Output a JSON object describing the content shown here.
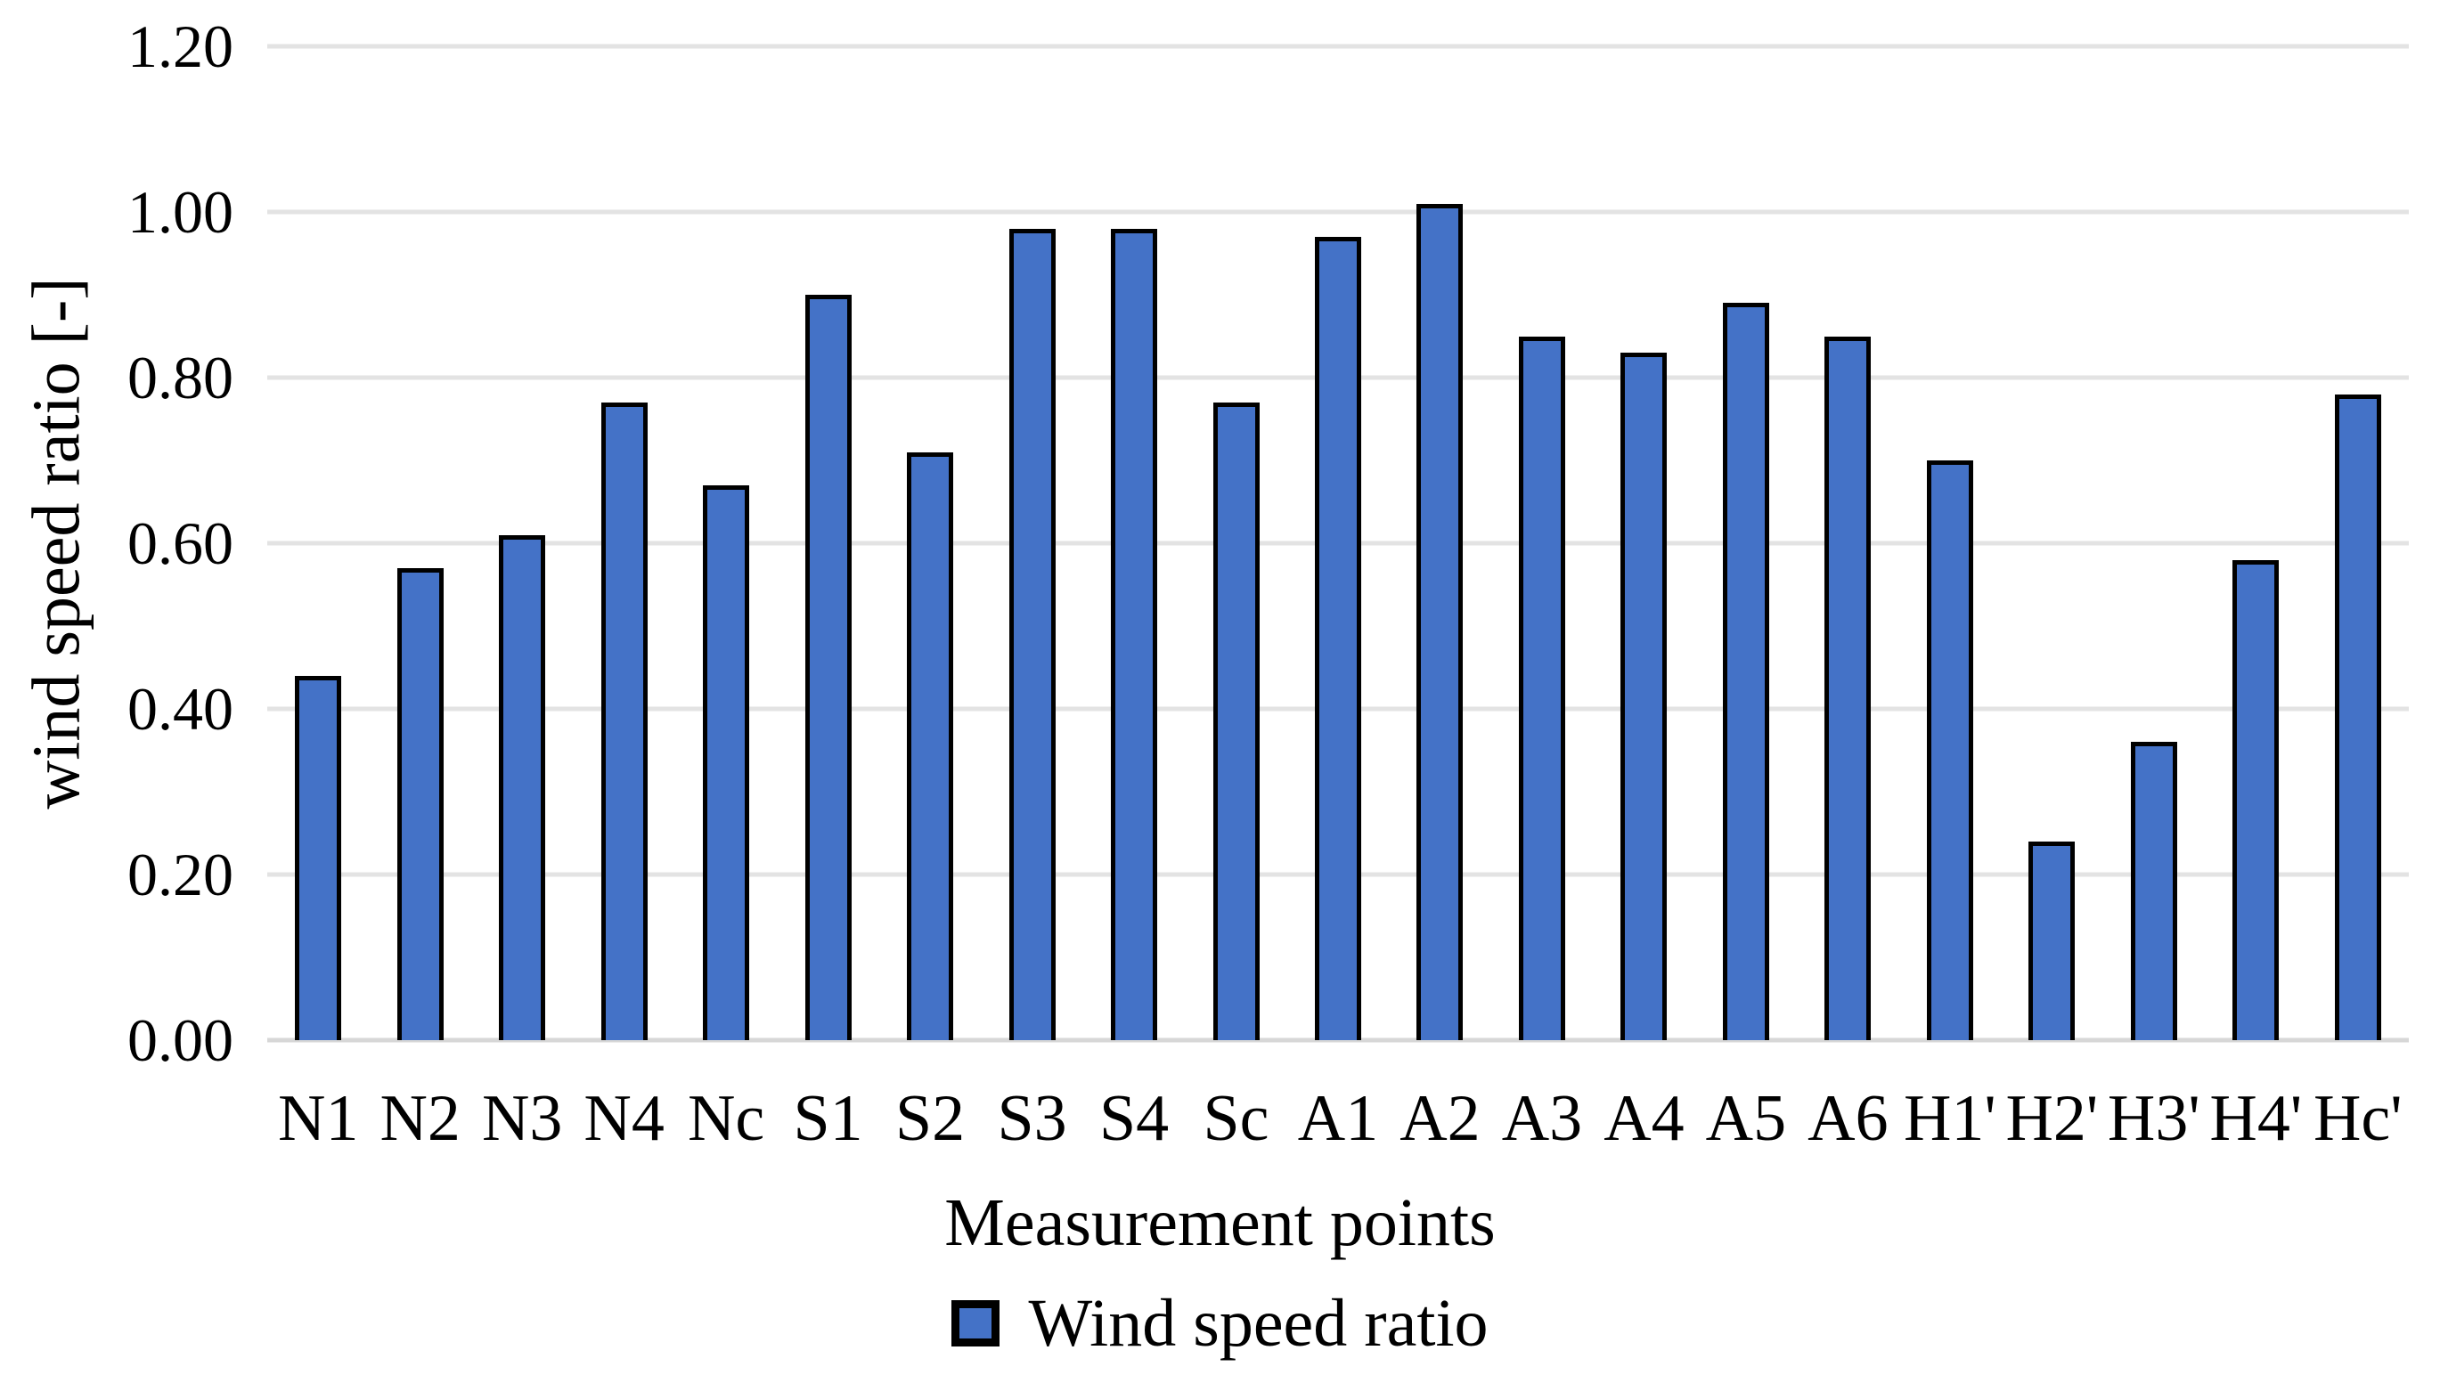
{
  "chart_data": {
    "type": "bar",
    "title": "",
    "xlabel": "Measurement points",
    "ylabel": "wind speed ratio [-]",
    "categories": [
      "N1",
      "N2",
      "N3",
      "N4",
      "Nc",
      "S1",
      "S2",
      "S3",
      "S4",
      "Sc",
      "A1",
      "A2",
      "A3",
      "A4",
      "A5",
      "A6",
      "H1'",
      "H2'",
      "H3'",
      "H4'",
      "Hc'"
    ],
    "series": [
      {
        "name": "Wind speed ratio",
        "values": [
          0.44,
          0.57,
          0.61,
          0.77,
          0.67,
          0.9,
          0.71,
          0.98,
          0.98,
          0.77,
          0.97,
          1.01,
          0.85,
          0.83,
          0.89,
          0.85,
          0.7,
          0.24,
          0.36,
          0.58,
          0.78
        ]
      }
    ],
    "ylim": [
      0.0,
      1.2
    ],
    "yticks": [
      0.0,
      0.2,
      0.4,
      0.6,
      0.8,
      1.0,
      1.2
    ],
    "ytick_labels": [
      "0.00",
      "0.20",
      "0.40",
      "0.60",
      "0.80",
      "1.00",
      "1.20"
    ],
    "grid": true,
    "legend": {
      "position": "bottom",
      "entries": [
        "Wind speed ratio"
      ]
    },
    "colors": {
      "bar_fill": "#4472C7",
      "bar_border": "#000000",
      "gridline": "#E3E3E3",
      "baseline": "#D7D7D7",
      "text": "#000000",
      "background": "#FFFFFF"
    }
  }
}
